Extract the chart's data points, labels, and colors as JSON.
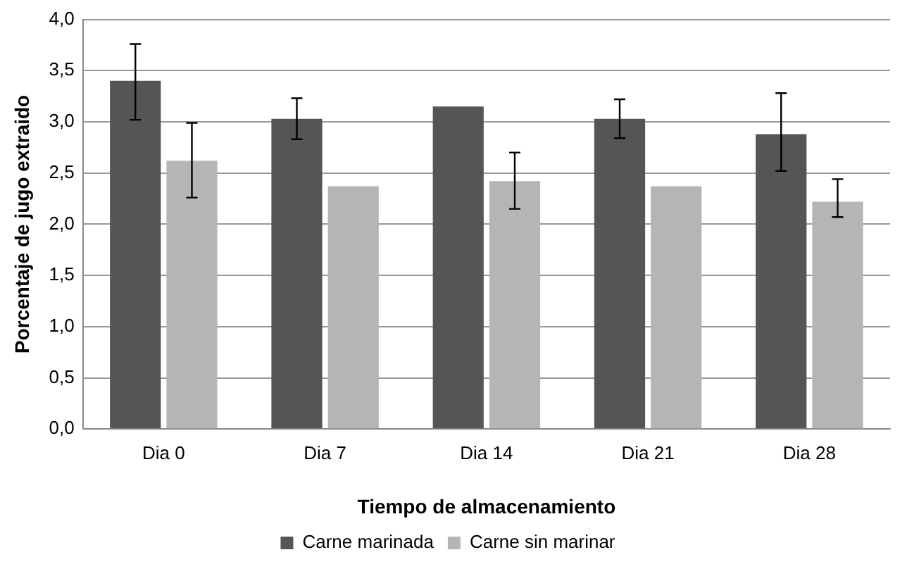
{
  "chart_data": {
    "type": "bar",
    "xlabel": "Tiempo de almacenamiento",
    "ylabel": "Porcentaje de jugo extraido",
    "categories": [
      "Dia 0",
      "Dia 7",
      "Dia 14",
      "Dia 21",
      "Dia 28"
    ],
    "series": [
      {
        "name": "Carne marinada",
        "color": "#555555",
        "values": [
          3.4,
          3.03,
          3.15,
          3.03,
          2.88
        ],
        "errors": [
          [
            3.02,
            3.76
          ],
          [
            2.83,
            3.23
          ],
          null,
          [
            2.84,
            3.22
          ],
          [
            2.52,
            3.28
          ]
        ]
      },
      {
        "name": "Carne sin marinar",
        "color": "#b5b5b5",
        "values": [
          2.62,
          2.37,
          2.42,
          2.37,
          2.22
        ],
        "errors": [
          [
            2.26,
            2.99
          ],
          null,
          [
            2.15,
            2.7
          ],
          null,
          [
            2.07,
            2.44
          ]
        ]
      }
    ],
    "ylim": [
      0,
      4
    ],
    "yticks": [
      {
        "value": 0,
        "label": "0,0"
      },
      {
        "value": 0.5,
        "label": "0,5"
      },
      {
        "value": 1,
        "label": "1,0"
      },
      {
        "value": 1.5,
        "label": "1,5"
      },
      {
        "value": 2,
        "label": "2,0"
      },
      {
        "value": 2.5,
        "label": "2,5"
      },
      {
        "value": 3,
        "label": "3,0"
      },
      {
        "value": 3.5,
        "label": "3,5"
      },
      {
        "value": 4,
        "label": "4,0"
      }
    ],
    "grid": "y",
    "legend": "bottom"
  }
}
